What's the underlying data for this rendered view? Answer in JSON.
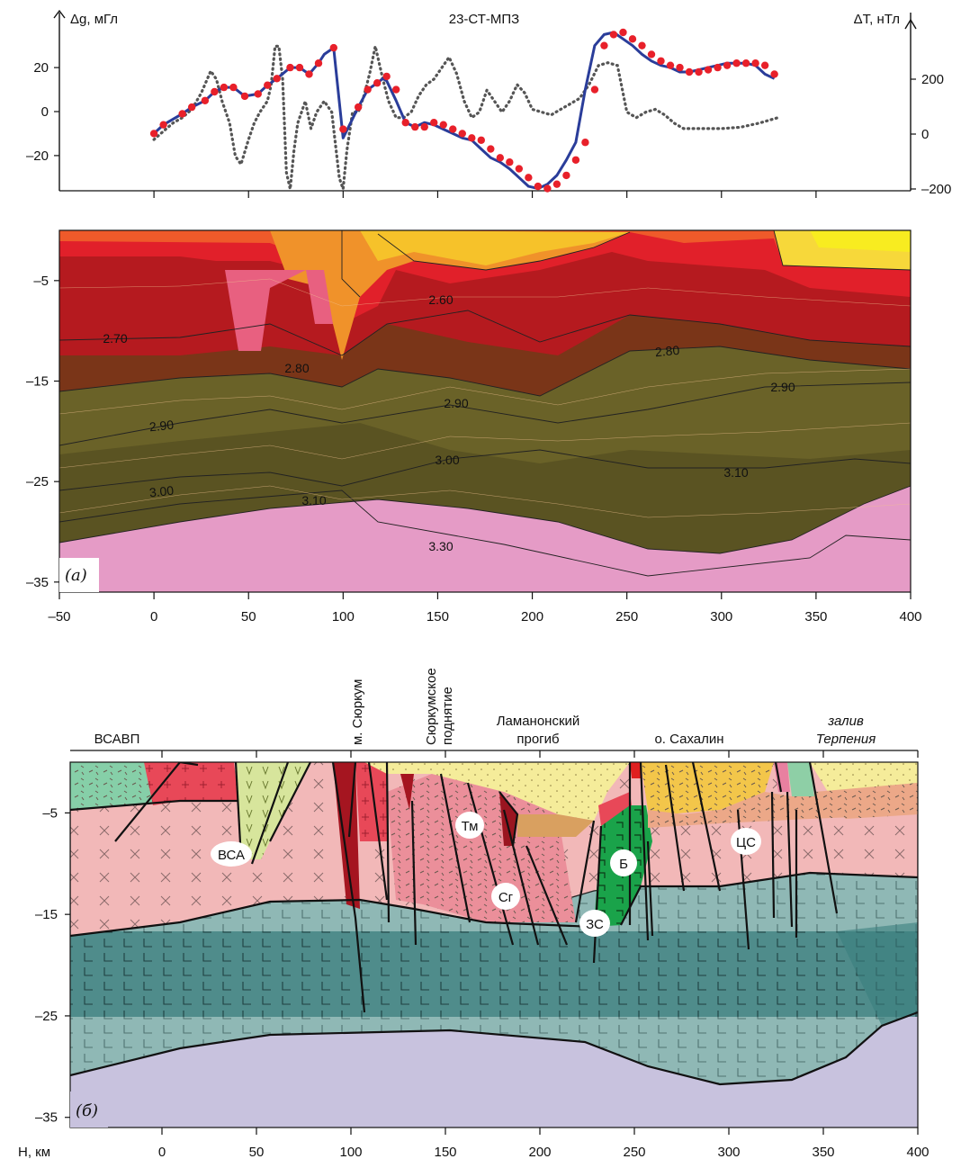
{
  "chart_data": [
    {
      "type": "line",
      "title": "23-СТ-МПЗ",
      "ylabel": "Δg, мГл",
      "y2label": "ΔT, нТл",
      "ylim": [
        -36,
        36
      ],
      "y2lim": [
        -200,
        300
      ],
      "y_ticks": [
        "20",
        "0",
        "–20"
      ],
      "y2_ticks": [
        "200",
        "0",
        "–200"
      ],
      "xlim": [
        -50,
        400
      ],
      "series": [
        {
          "role": "gravity-observed",
          "style": "red-dots",
          "color": "#e8202a",
          "x": [
            0,
            5,
            15,
            20,
            27,
            32,
            37,
            42,
            48,
            55,
            60,
            65,
            72,
            77,
            82,
            87,
            95,
            100,
            108,
            113,
            118,
            123,
            128,
            133,
            138,
            143,
            148,
            153,
            158,
            163,
            168,
            173,
            178,
            183,
            188,
            193,
            198,
            203,
            208,
            213,
            218,
            223,
            228,
            233,
            238,
            243,
            248,
            253,
            258,
            263,
            268,
            273,
            278,
            283,
            288,
            293,
            298,
            303,
            308,
            313,
            318,
            323,
            328
          ],
          "values": [
            -10,
            -6,
            -1,
            2,
            5,
            9,
            11,
            11,
            7,
            8,
            12,
            15,
            20,
            20,
            17,
            22,
            29,
            -8,
            2,
            10,
            13,
            16,
            10,
            -5,
            -7,
            -7,
            -5,
            -6,
            -8,
            -10,
            -12,
            -13,
            -17,
            -21,
            -23,
            -26,
            -30,
            -34,
            -35,
            -33,
            -29,
            -22,
            -14,
            10,
            30,
            35,
            36,
            33,
            30,
            26,
            23,
            21,
            20,
            18,
            18,
            19,
            20,
            21,
            22,
            22,
            22,
            21,
            17
          ]
        },
        {
          "role": "gravity-model",
          "style": "blue-line",
          "color": "#2a3d9a",
          "x": [
            0,
            5,
            15,
            20,
            27,
            32,
            37,
            42,
            48,
            55,
            60,
            65,
            72,
            77,
            82,
            87,
            90,
            95,
            100,
            108,
            113,
            118,
            121,
            123,
            128,
            133,
            138,
            143,
            148,
            153,
            158,
            163,
            168,
            173,
            178,
            183,
            188,
            193,
            198,
            203,
            208,
            213,
            218,
            223,
            228,
            233,
            238,
            243,
            248,
            253,
            258,
            263,
            268,
            273,
            278,
            283,
            288,
            293,
            298,
            303,
            308,
            313,
            318,
            323,
            328
          ],
          "values": [
            -10,
            -6,
            -1,
            2,
            5,
            9,
            11,
            11,
            7,
            8,
            12,
            15,
            20,
            20,
            17,
            22,
            26,
            29,
            -12,
            2,
            10,
            13,
            15,
            14,
            5,
            -5,
            -7,
            -5,
            -6,
            -8,
            -10,
            -12,
            -13,
            -17,
            -21,
            -23,
            -26,
            -30,
            -34,
            -35,
            -33,
            -29,
            -22,
            -14,
            10,
            30,
            35,
            36,
            33,
            30,
            26,
            23,
            21,
            20,
            18,
            18,
            19,
            20,
            21,
            22,
            22,
            22,
            21,
            17,
            15
          ]
        },
        {
          "role": "magnetic-observed",
          "style": "grey-dotted",
          "color": "#555555",
          "x": [
            0,
            5,
            10,
            15,
            20,
            25,
            30,
            33,
            36,
            40,
            43,
            46,
            50,
            53,
            56,
            60,
            62,
            64,
            66,
            68,
            70,
            72,
            74,
            76,
            78,
            80,
            83,
            86,
            90,
            94,
            98,
            100,
            102,
            105,
            108,
            111,
            114,
            117,
            119,
            121,
            124,
            128,
            132,
            136,
            140,
            144,
            148,
            152,
            156,
            160,
            164,
            168,
            172,
            176,
            180,
            184,
            188,
            192,
            196,
            200,
            205,
            210,
            215,
            220,
            225,
            230,
            235,
            240,
            245,
            250,
            255,
            260,
            265,
            270,
            275,
            280,
            285,
            290,
            300,
            310,
            320,
            330
          ],
          "values": [
            -20,
            10,
            40,
            60,
            90,
            150,
            230,
            200,
            120,
            40,
            -80,
            -110,
            -20,
            40,
            80,
            120,
            180,
            320,
            320,
            200,
            -140,
            -200,
            -60,
            40,
            80,
            120,
            20,
            80,
            120,
            80,
            -160,
            -200,
            -60,
            80,
            80,
            140,
            220,
            320,
            260,
            200,
            120,
            60,
            60,
            80,
            140,
            180,
            200,
            240,
            280,
            220,
            120,
            60,
            80,
            160,
            120,
            80,
            120,
            180,
            150,
            90,
            80,
            70,
            90,
            110,
            130,
            180,
            250,
            260,
            250,
            80,
            60,
            80,
            90,
            70,
            40,
            20,
            20,
            20,
            20,
            25,
            40,
            60
          ]
        }
      ]
    },
    {
      "type": "heatmap",
      "ylim": [
        -36,
        0
      ],
      "xlim": [
        -50,
        400
      ],
      "x_ticks": [
        "–50",
        "0",
        "50",
        "100",
        "150",
        "200",
        "250",
        "300",
        "350",
        "400"
      ],
      "y_ticks": [
        "–5",
        "–15",
        "–25",
        "–35"
      ],
      "panel_label": "(а)",
      "contour_labels": [
        "2.60",
        "2.70",
        "2.80",
        "2.80",
        "2.90",
        "2.90",
        "2.90",
        "3.00",
        "3.00",
        "3.10",
        "3.10",
        "3.30"
      ],
      "colors": {
        "low_density": "#f6e800",
        "mid_density": "#e8202a",
        "high_density": "#5a5020",
        "mantle": "#e090c0"
      }
    },
    {
      "type": "table",
      "ylim": [
        -36,
        0
      ],
      "xlim": [
        -50,
        400
      ],
      "x_ticks": [
        "0",
        "50",
        "100",
        "150",
        "200",
        "250",
        "300",
        "350",
        "400"
      ],
      "y_ticks": [
        "–5",
        "–15",
        "–25",
        "–35"
      ],
      "y_axis_unit": "Н, км",
      "panel_label": "(б)",
      "top_labels": {
        "vsavp": "ВСАВП",
        "syurkum_cape": "м. Сюркум",
        "syurkum_uplift_1": "Сюркумское",
        "syurkum_uplift_2": "поднятие",
        "lamanon_1": "Ламанонский",
        "lamanon_2": "прогиб",
        "sakhalin": "о. Сахалин",
        "terpeniya_1": "залив",
        "terpeniya_2": "Терпения"
      },
      "unit_badges": {
        "vsa": "ВСА",
        "tm": "Тм",
        "sg": "Сг",
        "b": "Б",
        "zs": "ЗС",
        "ts": "ЦС"
      },
      "colors": {
        "sediments": "#f5ec9a",
        "upper_crust": "#f2b8b8",
        "lower_crust": "#8fb8b5",
        "lower_crust_dark": "#3f8585",
        "mantle": "#c8c2de",
        "basalt": "#1aa34a",
        "volcanic_green": "#88d0b0"
      }
    }
  ]
}
